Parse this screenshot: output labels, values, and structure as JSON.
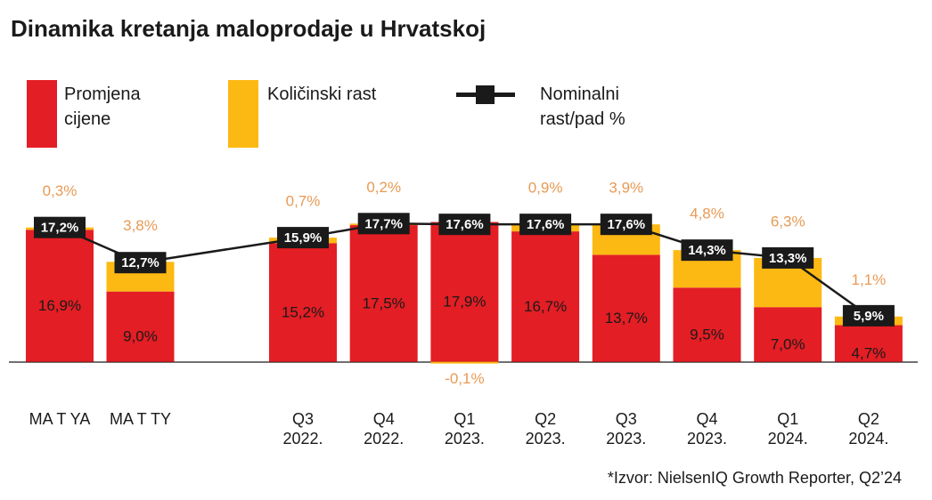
{
  "chart_data": {
    "type": "bar",
    "stacked": true,
    "title": "Dinamika kretanja maloprodaje u Hrvatskoj",
    "categories": [
      "MA T YA",
      "MA T TY",
      "Q3\n2022.",
      "Q4\n2022.",
      "Q1\n2023.",
      "Q2\n2023.",
      "Q3\n2023.",
      "Q4\n2023.",
      "Q1\n2024.",
      "Q2\n2024."
    ],
    "series": [
      {
        "name": "Promjena cijene",
        "type": "bar",
        "color": "#e31e24",
        "values": [
          16.9,
          9.0,
          15.2,
          17.5,
          17.9,
          16.7,
          13.7,
          9.5,
          7.0,
          4.7
        ],
        "value_labels": [
          "16,9%",
          "9,0%",
          "15,2%",
          "17,5%",
          "17,9%",
          "16,7%",
          "13,7%",
          "9,5%",
          "7,0%",
          "4,7%"
        ]
      },
      {
        "name": "Količinski rast",
        "type": "bar",
        "color": "#fdb913",
        "values": [
          0.3,
          3.8,
          0.7,
          0.2,
          -0.1,
          0.9,
          3.9,
          4.8,
          6.3,
          1.1
        ],
        "value_labels": [
          "0,3%",
          "3,8%",
          "0,7%",
          "0,2%",
          "-0,1%",
          "0,9%",
          "3,9%",
          "4,8%",
          "6,3%",
          "1,1%"
        ]
      },
      {
        "name": "Nominalni rast/pad %",
        "type": "line",
        "color": "#1a1a1a",
        "values": [
          17.2,
          12.7,
          15.9,
          17.7,
          17.6,
          17.6,
          17.6,
          14.3,
          13.3,
          5.9
        ],
        "value_labels": [
          "17,2%",
          "12,7%",
          "15,9%",
          "17,7%",
          "17,6%",
          "17,6%",
          "17,6%",
          "14,3%",
          "13,3%",
          "5,9%"
        ]
      }
    ],
    "ylim": [
      -3,
      24
    ],
    "source": "*Izvor: NielsenIQ Growth Reporter, Q2’24"
  }
}
